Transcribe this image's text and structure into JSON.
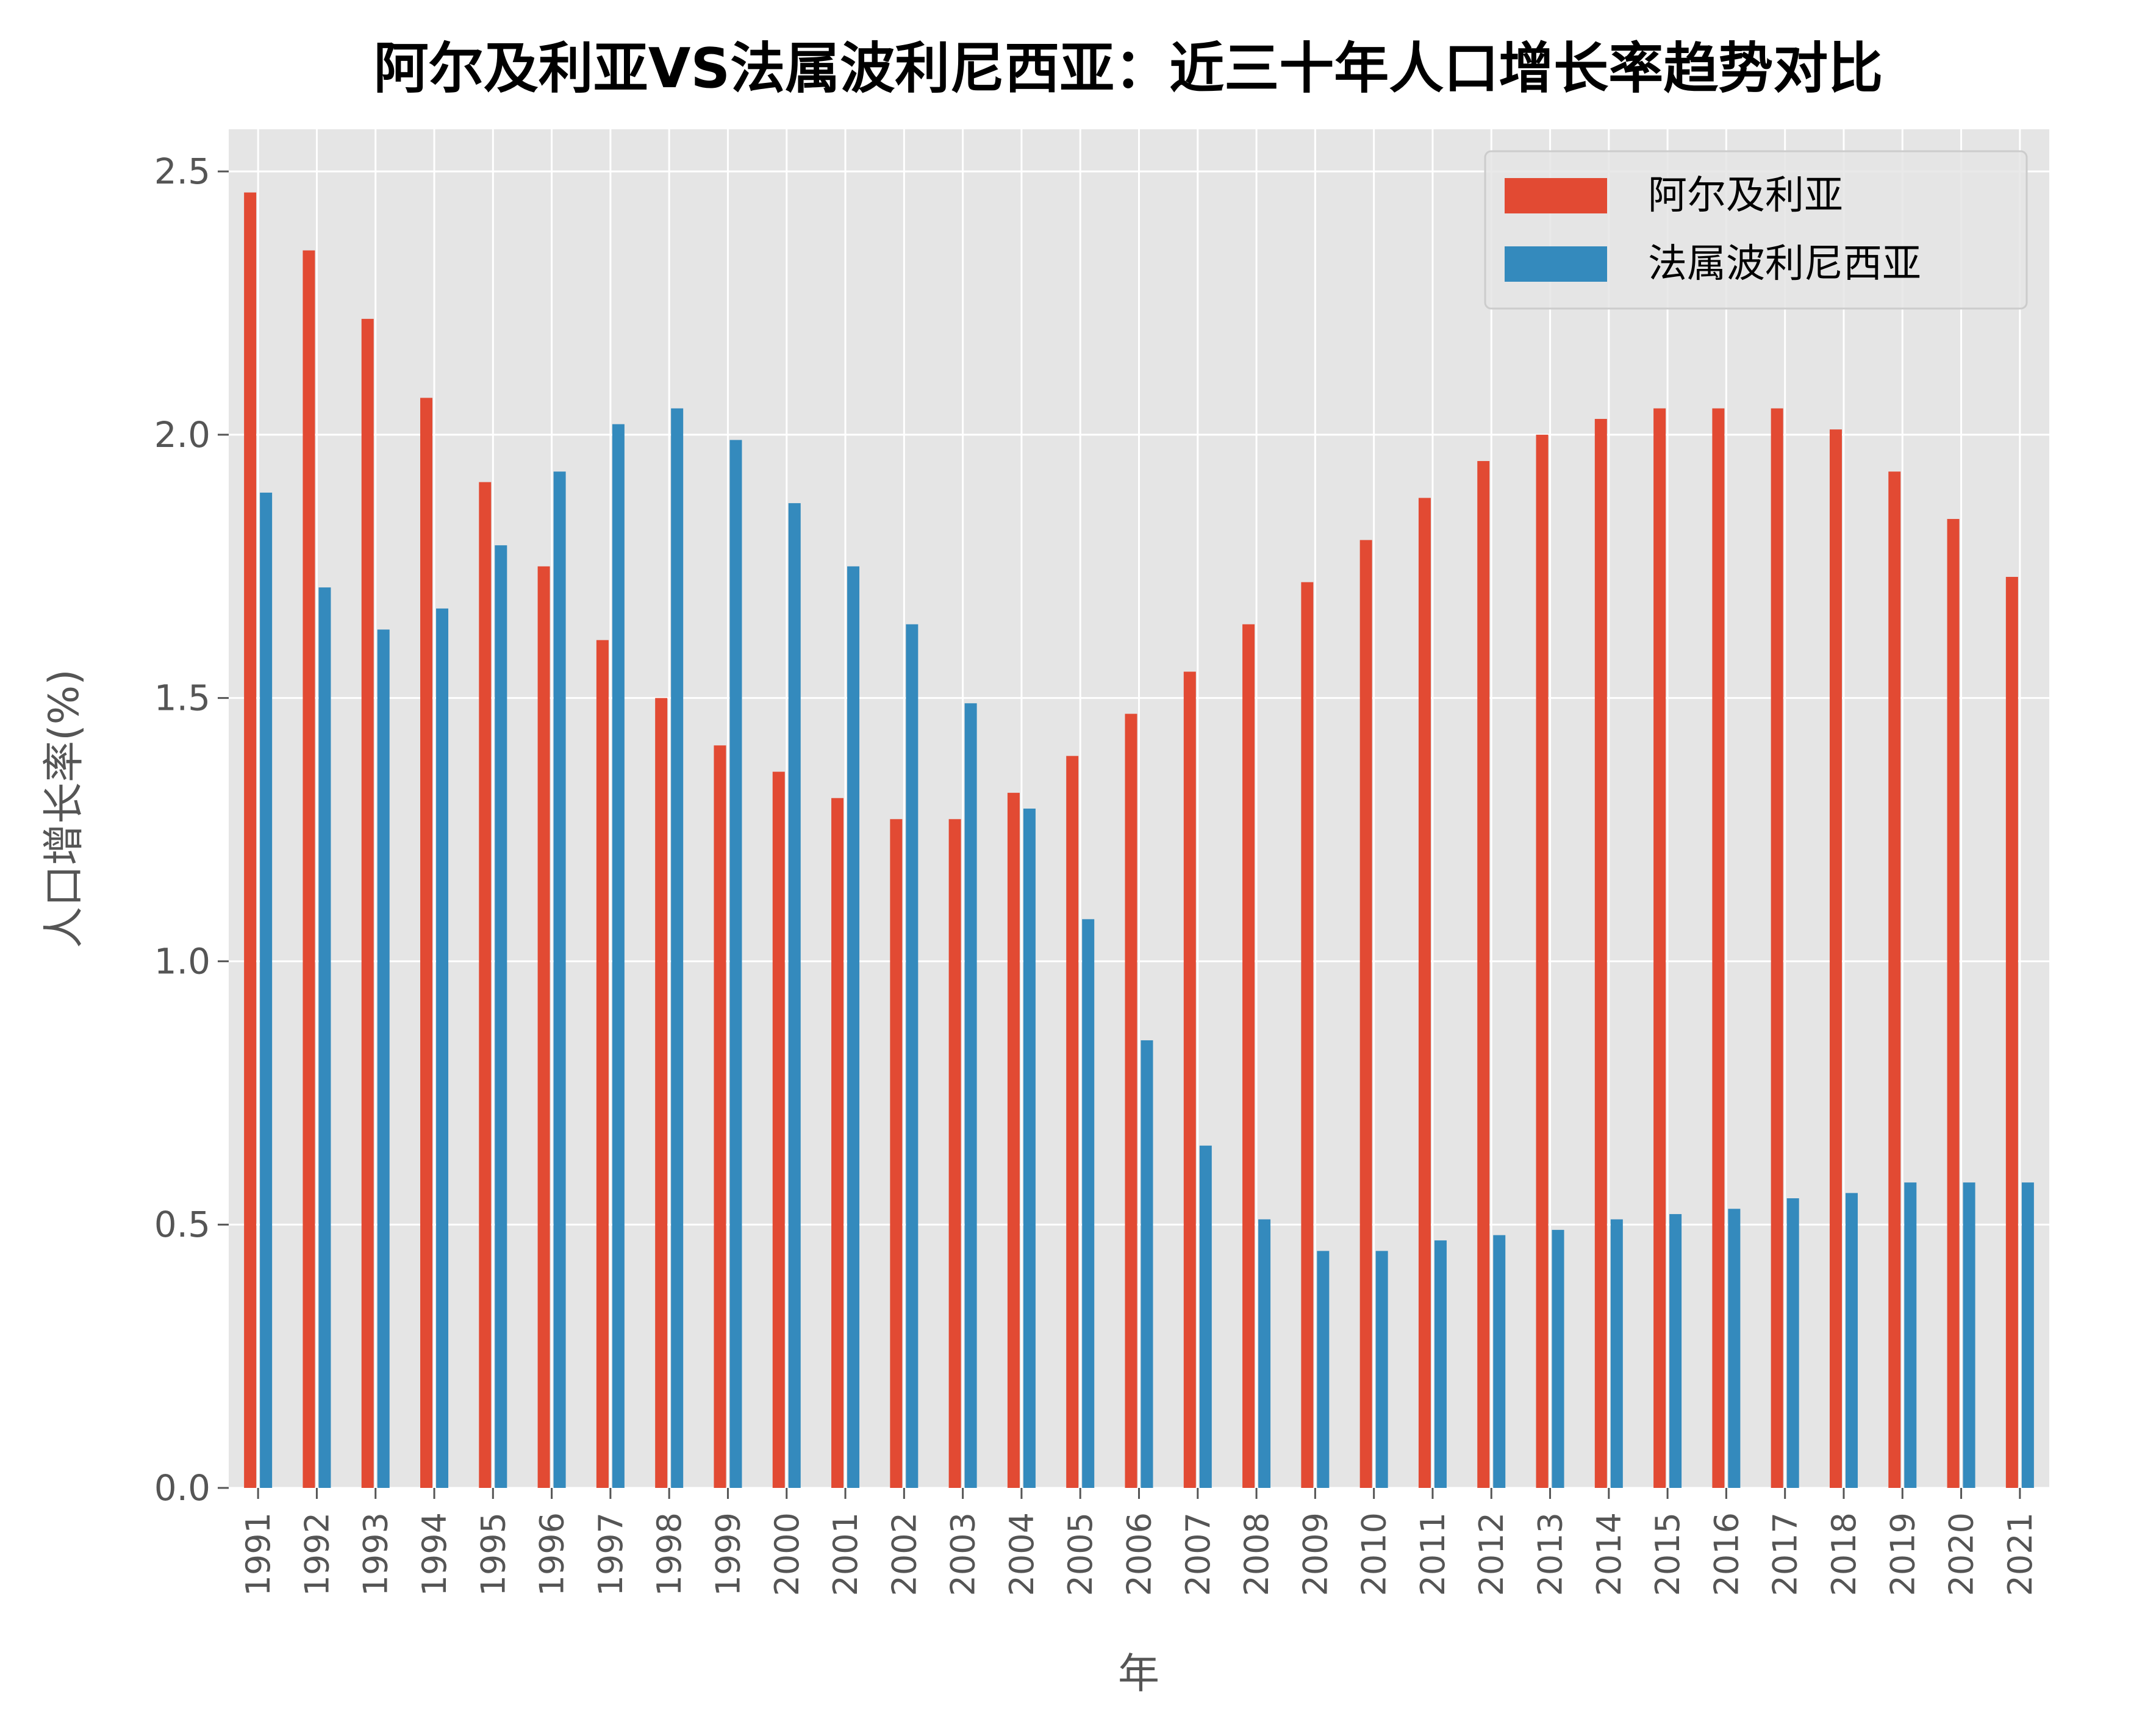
{
  "chart_data": {
    "type": "bar",
    "title": "阿尔及利亚VS法属波利尼西亚：近三十年人口增长率趋势对比",
    "xlabel": "年",
    "ylabel": "人口增长率(%)",
    "ylim": [
      0,
      2.58
    ],
    "yticks": [
      "0.0",
      "0.5",
      "1.0",
      "1.5",
      "2.0",
      "2.5"
    ],
    "grid": true,
    "legend_position": "top-right",
    "categories": [
      "1991",
      "1992",
      "1993",
      "1994",
      "1995",
      "1996",
      "1997",
      "1998",
      "1999",
      "2000",
      "2001",
      "2002",
      "2003",
      "2004",
      "2005",
      "2006",
      "2007",
      "2008",
      "2009",
      "2010",
      "2011",
      "2012",
      "2013",
      "2014",
      "2015",
      "2016",
      "2017",
      "2018",
      "2019",
      "2020",
      "2021"
    ],
    "series": [
      {
        "name": "阿尔及利亚",
        "color": "#E24A33",
        "values": [
          2.46,
          2.35,
          2.22,
          2.07,
          1.91,
          1.75,
          1.61,
          1.5,
          1.41,
          1.36,
          1.31,
          1.27,
          1.27,
          1.32,
          1.39,
          1.47,
          1.55,
          1.64,
          1.72,
          1.8,
          1.88,
          1.95,
          2.0,
          2.03,
          2.05,
          2.05,
          2.05,
          2.01,
          1.93,
          1.84,
          1.73
        ]
      },
      {
        "name": "法属波利尼西亚",
        "color": "#348ABD",
        "values": [
          1.89,
          1.71,
          1.63,
          1.67,
          1.79,
          1.93,
          2.02,
          2.05,
          1.99,
          1.87,
          1.75,
          1.64,
          1.49,
          1.29,
          1.08,
          0.85,
          0.65,
          0.51,
          0.45,
          0.45,
          0.47,
          0.48,
          0.49,
          0.51,
          0.52,
          0.53,
          0.55,
          0.56,
          0.58,
          0.58,
          0.58
        ]
      }
    ]
  }
}
